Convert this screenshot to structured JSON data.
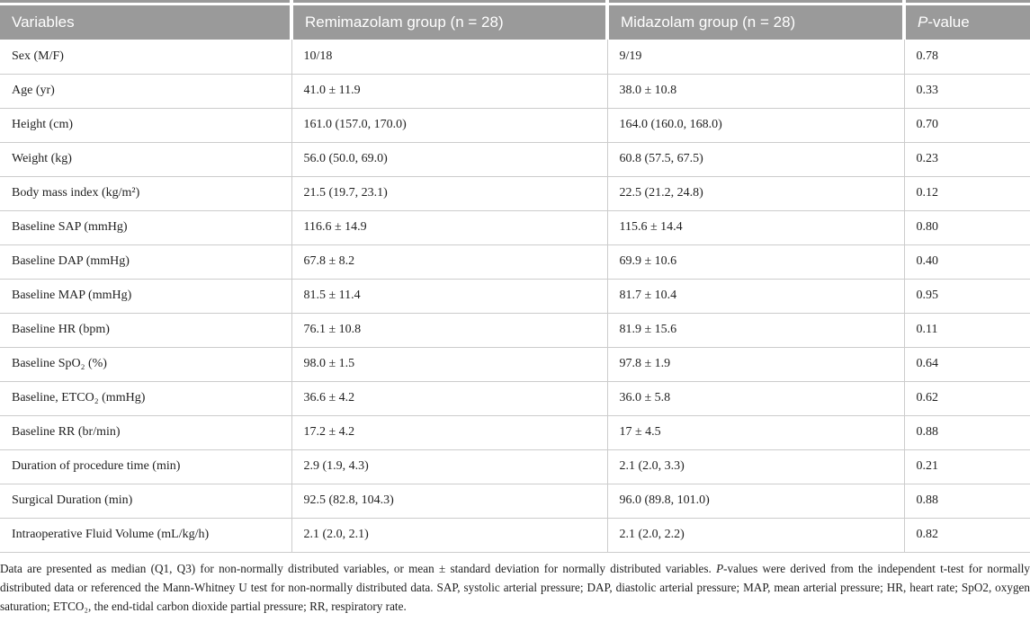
{
  "colors": {
    "header_bg": "#9a9a9a",
    "header_text": "#ffffff",
    "body_text": "#1f1f1f",
    "grid_line": "#cccccc",
    "row_bg": "#ffffff"
  },
  "table": {
    "columns": {
      "variables": "Variables",
      "remimazolam": "Remimazolam group (n = 28)",
      "midazolam": "Midazolam group (n = 28)",
      "pvalue_italic": "P",
      "pvalue_rest": "-value"
    },
    "rows": [
      [
        "Sex (M/F)",
        "10/18",
        "9/19",
        "0.78"
      ],
      [
        "Age (yr)",
        "41.0 ± 11.9",
        "38.0 ± 10.8",
        "0.33"
      ],
      [
        "Height (cm)",
        "161.0 (157.0, 170.0)",
        "164.0 (160.0, 168.0)",
        "0.70"
      ],
      [
        "Weight (kg)",
        "56.0 (50.0, 69.0)",
        "60.8 (57.5, 67.5)",
        "0.23"
      ],
      [
        "Body mass index (kg/m²)",
        "21.5 (19.7, 23.1)",
        "22.5 (21.2, 24.8)",
        "0.12"
      ],
      [
        "Baseline SAP (mmHg)",
        "116.6 ± 14.9",
        "115.6 ± 14.4",
        "0.80"
      ],
      [
        "Baseline DAP (mmHg)",
        "67.8 ± 8.2",
        "69.9 ± 10.6",
        "0.40"
      ],
      [
        "Baseline MAP (mmHg)",
        "81.5 ± 11.4",
        "81.7 ± 10.4",
        "0.95"
      ],
      [
        "Baseline HR (bpm)",
        "76.1 ± 10.8",
        "81.9 ± 15.6",
        "0.11"
      ],
      [
        "Baseline SpO₂ (%)",
        "98.0 ± 1.5",
        "97.8 ± 1.9",
        "0.64"
      ],
      [
        "Baseline, ETCO₂ (mmHg)",
        "36.6 ± 4.2",
        "36.0 ± 5.8",
        "0.62"
      ],
      [
        "Baseline RR (br/min)",
        "17.2 ± 4.2",
        "17 ± 4.5",
        "0.88"
      ],
      [
        "Duration of procedure time (min)",
        "2.9 (1.9, 4.3)",
        "2.1 (2.0, 3.3)",
        "0.21"
      ],
      [
        "Surgical Duration (min)",
        "92.5 (82.8, 104.3)",
        "96.0 (89.8, 101.0)",
        "0.88"
      ],
      [
        "Intraoperative Fluid Volume (mL/kg/h)",
        "2.1 (2.0, 2.1)",
        "2.1 (2.0, 2.2)",
        "0.82"
      ]
    ]
  },
  "footnote": {
    "part1": "Data are presented as median (Q1, Q3) for non-normally distributed variables, or mean ± standard deviation for normally distributed variables. ",
    "italic_p": "P",
    "part2": "-values were derived from the independent t-test for normally distributed data or referenced the Mann-Whitney U test for non-normally distributed data. SAP, systolic arterial pressure; DAP, diastolic arterial pressure; MAP, mean arterial pressure; HR, heart rate; SpO2, oxygen saturation; ETCO₂, the end-tidal carbon dioxide partial pressure; RR, respiratory rate."
  }
}
